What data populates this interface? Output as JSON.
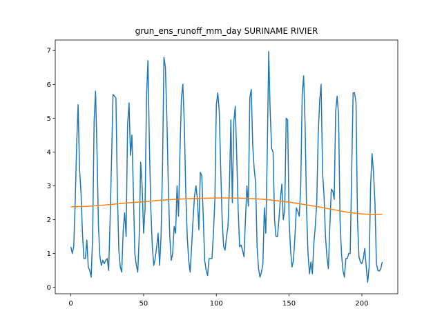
{
  "chart_data": {
    "type": "line",
    "title": "grun_ens_runoff_mm_day SURINAME RIVIER",
    "x": [
      0,
      1,
      2,
      3,
      4,
      5,
      6,
      7,
      8,
      9,
      10,
      11,
      12,
      13,
      14,
      15,
      16,
      17,
      18,
      19,
      20,
      21,
      22,
      23,
      24,
      25,
      26,
      27,
      28,
      29,
      30,
      31,
      32,
      33,
      34,
      35,
      36,
      37,
      38,
      39,
      40,
      41,
      42,
      43,
      44,
      45,
      46,
      47,
      48,
      49,
      50,
      51,
      52,
      53,
      54,
      55,
      56,
      57,
      58,
      59,
      60,
      61,
      62,
      63,
      64,
      65,
      66,
      67,
      68,
      69,
      70,
      71,
      72,
      73,
      74,
      75,
      76,
      77,
      78,
      79,
      80,
      81,
      82,
      83,
      84,
      85,
      86,
      87,
      88,
      89,
      90,
      91,
      92,
      93,
      94,
      95,
      96,
      97,
      98,
      99,
      100,
      101,
      102,
      103,
      104,
      105,
      106,
      107,
      108,
      109,
      110,
      111,
      112,
      113,
      114,
      115,
      116,
      117,
      118,
      119,
      120,
      121,
      122,
      123,
      124,
      125,
      126,
      127,
      128,
      129,
      130,
      131,
      132,
      133,
      134,
      135,
      136,
      137,
      138,
      139,
      140,
      141,
      142,
      143,
      144,
      145,
      146,
      147,
      148,
      149,
      150,
      151,
      152,
      153,
      154,
      155,
      156,
      157,
      158,
      159,
      160,
      161,
      162,
      163,
      164,
      165,
      166,
      167,
      168,
      169,
      170,
      171,
      172,
      173,
      174,
      175,
      176,
      177,
      178,
      179,
      180,
      181,
      182,
      183,
      184,
      185,
      186,
      187,
      188,
      189,
      190,
      191,
      192,
      193,
      194,
      195,
      196,
      197,
      198,
      199,
      200,
      201,
      202,
      203,
      204,
      205,
      206,
      207,
      208,
      209,
      210,
      211,
      212,
      213,
      214
    ],
    "series": [
      {
        "color": "#1f77b4",
        "values": [
          1.2,
          1.0,
          1.2,
          2.5,
          4.2,
          5.4,
          3.5,
          2.8,
          1.6,
          0.85,
          0.85,
          1.4,
          0.6,
          0.5,
          0.3,
          1.5,
          4.9,
          5.8,
          4.0,
          1.8,
          0.9,
          0.65,
          0.8,
          0.7,
          0.8,
          0.85,
          0.5,
          2.0,
          3.8,
          5.7,
          5.65,
          5.6,
          2.8,
          1.1,
          0.6,
          0.45,
          1.7,
          2.2,
          1.5,
          4.8,
          5.45,
          3.9,
          4.5,
          2.8,
          1.0,
          0.65,
          0.45,
          1.5,
          3.7,
          3.0,
          1.6,
          2.3,
          5.6,
          6.7,
          4.2,
          2.3,
          1.2,
          0.65,
          0.85,
          1.2,
          1.6,
          0.65,
          1.5,
          3.5,
          6.8,
          6.5,
          5.0,
          3.0,
          1.5,
          0.8,
          1.0,
          1.8,
          1.6,
          3.0,
          2.1,
          4.0,
          5.6,
          6.0,
          4.8,
          2.8,
          1.5,
          0.8,
          0.45,
          1.2,
          2.0,
          2.7,
          3.0,
          2.6,
          1.7,
          3.4,
          3.3,
          2.1,
          0.8,
          0.5,
          0.35,
          0.85,
          0.85,
          0.85,
          1.6,
          2.6,
          5.4,
          5.75,
          5.2,
          3.5,
          2.0,
          1.2,
          1.1,
          1.5,
          1.8,
          3.0,
          4.95,
          2.5,
          4.9,
          5.35,
          3.9,
          2.3,
          1.2,
          1.25,
          1.1,
          0.9,
          2.0,
          3.0,
          2.4,
          5.6,
          5.85,
          4.2,
          3.5,
          3.1,
          1.2,
          0.55,
          0.3,
          0.45,
          0.7,
          2.35,
          1.6,
          4.0,
          6.97,
          5.2,
          4.1,
          4.0,
          2.0,
          1.5,
          1.5,
          2.0,
          2.6,
          3.05,
          2.0,
          2.3,
          5.0,
          4.95,
          2.0,
          1.1,
          0.6,
          0.8,
          1.5,
          2.35,
          2.25,
          2.1,
          3.0,
          5.7,
          6.25,
          4.8,
          2.3,
          1.0,
          0.4,
          0.75,
          0.4,
          1.3,
          1.8,
          2.5,
          4.5,
          5.5,
          6.0,
          3.4,
          2.7,
          1.5,
          0.9,
          0.55,
          1.8,
          2.9,
          2.85,
          2.6,
          5.2,
          5.65,
          5.1,
          2.0,
          1.0,
          0.5,
          0.3,
          0.85,
          0.85,
          1.0,
          1.0,
          3.4,
          5.75,
          5.75,
          5.45,
          2.0,
          0.9,
          0.75,
          0.7,
          0.85,
          1.15,
          0.6,
          0.15,
          0.6,
          3.0,
          3.95,
          3.4,
          2.5,
          0.7,
          0.5,
          0.48,
          0.55,
          0.75
        ]
      },
      {
        "color": "#ff7f0e",
        "x": [
          0,
          10,
          20,
          30,
          40,
          50,
          60,
          70,
          80,
          90,
          100,
          110,
          120,
          130,
          140,
          150,
          160,
          170,
          180,
          190,
          200,
          210,
          214
        ],
        "values": [
          2.38,
          2.39,
          2.42,
          2.46,
          2.5,
          2.53,
          2.57,
          2.6,
          2.62,
          2.63,
          2.64,
          2.64,
          2.63,
          2.61,
          2.57,
          2.52,
          2.45,
          2.38,
          2.3,
          2.22,
          2.17,
          2.15,
          2.15
        ]
      }
    ],
    "xlim": [
      -10.7,
      224.7
    ],
    "xticks": [
      0,
      50,
      100,
      150,
      200
    ],
    "ylim": [
      -0.19,
      7.31
    ],
    "yticks": [
      0,
      1,
      2,
      3,
      4,
      5,
      6,
      7
    ]
  }
}
